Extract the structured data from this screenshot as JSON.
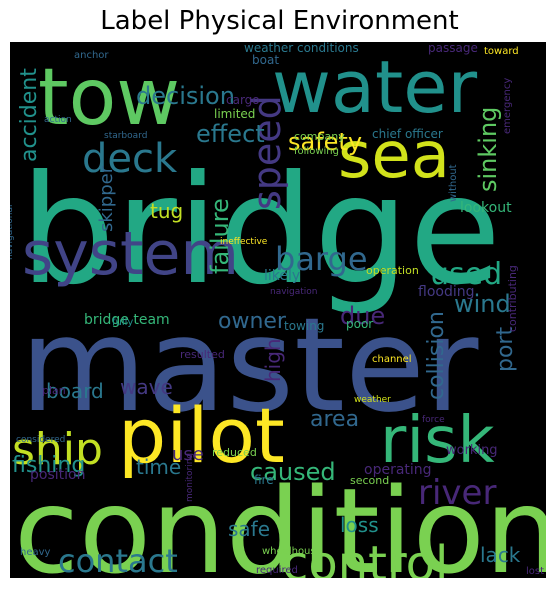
{
  "chart_data": {
    "type": "wordcloud",
    "title": "Label Physical Environment",
    "background": "#000000",
    "colormap": "viridis",
    "words": [
      {
        "text": "bridge",
        "weight": 1.0,
        "color": "#22a884",
        "rot": 0
      },
      {
        "text": "master",
        "weight": 0.98,
        "color": "#3b528b",
        "rot": 0
      },
      {
        "text": "condition",
        "weight": 0.95,
        "color": "#7ad151",
        "rot": 0
      },
      {
        "text": "tow",
        "weight": 0.72,
        "color": "#5ec962",
        "rot": 0
      },
      {
        "text": "water",
        "weight": 0.7,
        "color": "#21918c",
        "rot": 0
      },
      {
        "text": "pilot",
        "weight": 0.68,
        "color": "#fde725",
        "rot": 0
      },
      {
        "text": "sea",
        "weight": 0.6,
        "color": "#d2e21b",
        "rot": 0
      },
      {
        "text": "system",
        "weight": 0.58,
        "color": "#414487",
        "rot": 0
      },
      {
        "text": "risk",
        "weight": 0.57,
        "color": "#35b779",
        "rot": 0
      },
      {
        "text": "control",
        "weight": 0.45,
        "color": "#7ad151",
        "rot": 0
      },
      {
        "text": "deck",
        "weight": 0.4,
        "color": "#2a788e",
        "rot": 0
      },
      {
        "text": "ship",
        "weight": 0.38,
        "color": "#c2df23",
        "rot": 0
      },
      {
        "text": "speed",
        "weight": 0.36,
        "color": "#443983",
        "rot": 90
      },
      {
        "text": "river",
        "weight": 0.3,
        "color": "#482878",
        "rot": 0
      },
      {
        "text": "contact",
        "weight": 0.3,
        "color": "#2a788e",
        "rot": 0
      },
      {
        "text": "barge",
        "weight": 0.28,
        "color": "#31688e",
        "rot": 0
      },
      {
        "text": "used",
        "weight": 0.26,
        "color": "#22a884",
        "rot": 0
      },
      {
        "text": "decision",
        "weight": 0.24,
        "color": "#2a788e",
        "rot": 0
      },
      {
        "text": "effect",
        "weight": 0.22,
        "color": "#2a788e",
        "rot": 0
      },
      {
        "text": "safety",
        "weight": 0.22,
        "color": "#fde725",
        "rot": 0
      },
      {
        "text": "sinking",
        "weight": 0.22,
        "color": "#5ec962",
        "rot": 90
      },
      {
        "text": "failure",
        "weight": 0.22,
        "color": "#35b779",
        "rot": 90
      },
      {
        "text": "wind",
        "weight": 0.22,
        "color": "#2a788e",
        "rot": 0
      },
      {
        "text": "owner",
        "weight": 0.22,
        "color": "#31688e",
        "rot": 0
      },
      {
        "text": "due",
        "weight": 0.22,
        "color": "#482878",
        "rot": 0
      },
      {
        "text": "accident",
        "weight": 0.22,
        "color": "#21918c",
        "rot": 90
      },
      {
        "text": "area",
        "weight": 0.22,
        "color": "#31688e",
        "rot": 0
      },
      {
        "text": "collision",
        "weight": 0.22,
        "color": "#31688e",
        "rot": 90
      },
      {
        "text": "high",
        "weight": 0.2,
        "color": "#482878",
        "rot": 90
      },
      {
        "text": "port",
        "weight": 0.2,
        "color": "#31688e",
        "rot": 90
      },
      {
        "text": "wave",
        "weight": 0.2,
        "color": "#443983",
        "rot": 0
      },
      {
        "text": "board",
        "weight": 0.2,
        "color": "#2a788e",
        "rot": 0
      },
      {
        "text": "fishing",
        "weight": 0.2,
        "color": "#21918c",
        "rot": 0
      },
      {
        "text": "time",
        "weight": 0.2,
        "color": "#2a788e",
        "rot": 0
      },
      {
        "text": "caused",
        "weight": 0.2,
        "color": "#35b779",
        "rot": 0
      },
      {
        "text": "use",
        "weight": 0.2,
        "color": "#482878",
        "rot": 0
      },
      {
        "text": "loss",
        "weight": 0.2,
        "color": "#21918c",
        "rot": 0
      },
      {
        "text": "safe",
        "weight": 0.2,
        "color": "#2a788e",
        "rot": 0
      },
      {
        "text": "lack",
        "weight": 0.2,
        "color": "#2a788e",
        "rot": 0
      },
      {
        "text": "tug",
        "weight": 0.18,
        "color": "#c2df23",
        "rot": 0
      },
      {
        "text": "skipper",
        "weight": 0.16,
        "color": "#31688e",
        "rot": 90
      },
      {
        "text": "bridge team",
        "weight": 0.15,
        "color": "#35b779",
        "rot": 0
      },
      {
        "text": "weather conditions",
        "weight": 0.12,
        "color": "#2a788e",
        "rot": 0
      },
      {
        "text": "passage",
        "weight": 0.11,
        "color": "#482878",
        "rot": 0
      },
      {
        "text": "anchor",
        "weight": 0.11,
        "color": "#31688e",
        "rot": 0
      },
      {
        "text": "toward",
        "weight": 0.1,
        "color": "#fde725",
        "rot": 0
      },
      {
        "text": "boat",
        "weight": 0.1,
        "color": "#31688e",
        "rot": 0
      },
      {
        "text": "cargo",
        "weight": 0.11,
        "color": "#482878",
        "rot": 0
      },
      {
        "text": "chief officer",
        "weight": 0.11,
        "color": "#2a788e",
        "rot": 0
      },
      {
        "text": "limited",
        "weight": 0.1,
        "color": "#7ad151",
        "rot": 0
      },
      {
        "text": "action",
        "weight": 0.09,
        "color": "#31688e",
        "rot": 0
      },
      {
        "text": "starboard",
        "weight": 0.09,
        "color": "#31688e",
        "rot": 0
      },
      {
        "text": "company",
        "weight": 0.1,
        "color": "#7ad151",
        "rot": 0
      },
      {
        "text": "following",
        "weight": 0.1,
        "color": "#7ad151",
        "rot": 0
      },
      {
        "text": "emergency",
        "weight": 0.1,
        "color": "#482878",
        "rot": 90
      },
      {
        "text": "without",
        "weight": 0.1,
        "color": "#31688e",
        "rot": 90
      },
      {
        "text": "lookout",
        "weight": 0.11,
        "color": "#35b779",
        "rot": 0
      },
      {
        "text": "ineffective",
        "weight": 0.09,
        "color": "#fde725",
        "rot": 0
      },
      {
        "text": "likely",
        "weight": 0.11,
        "color": "#2a788e",
        "rot": 0
      },
      {
        "text": "operation",
        "weight": 0.1,
        "color": "#c2df23",
        "rot": 0
      },
      {
        "text": "flooding",
        "weight": 0.11,
        "color": "#443983",
        "rot": 0
      },
      {
        "text": "navigation",
        "weight": 0.09,
        "color": "#482878",
        "rot": 0
      },
      {
        "text": "navigational",
        "weight": 0.09,
        "color": "#31688e",
        "rot": 90
      },
      {
        "text": "towing",
        "weight": 0.1,
        "color": "#2a788e",
        "rot": 0
      },
      {
        "text": "fully",
        "weight": 0.1,
        "color": "#21918c",
        "rot": 0
      },
      {
        "text": "poor",
        "weight": 0.1,
        "color": "#35b779",
        "rot": 0
      },
      {
        "text": "contributing",
        "weight": 0.11,
        "color": "#482878",
        "rot": 90
      },
      {
        "text": "resulted",
        "weight": 0.1,
        "color": "#482878",
        "rot": 0
      },
      {
        "text": "channel",
        "weight": 0.1,
        "color": "#fde725",
        "rot": 0
      },
      {
        "text": "plan",
        "weight": 0.1,
        "color": "#482878",
        "rot": 0
      },
      {
        "text": "weather",
        "weight": 0.09,
        "color": "#d2e21b",
        "rot": 0
      },
      {
        "text": "considered",
        "weight": 0.09,
        "color": "#31688e",
        "rot": 0
      },
      {
        "text": "reduced",
        "weight": 0.1,
        "color": "#7ad151",
        "rot": 0
      },
      {
        "text": "operating",
        "weight": 0.12,
        "color": "#482878",
        "rot": 0
      },
      {
        "text": "working",
        "weight": 0.1,
        "color": "#482878",
        "rot": 0
      },
      {
        "text": "position",
        "weight": 0.11,
        "color": "#482878",
        "rot": 0
      },
      {
        "text": "fire",
        "weight": 0.1,
        "color": "#2a788e",
        "rot": 0
      },
      {
        "text": "second",
        "weight": 0.1,
        "color": "#7ad151",
        "rot": 0
      },
      {
        "text": "monitoring",
        "weight": 0.09,
        "color": "#482878",
        "rot": 90
      },
      {
        "text": "heavy",
        "weight": 0.1,
        "color": "#31688e",
        "rot": 0
      },
      {
        "text": "wheelhouse",
        "weight": 0.1,
        "color": "#7ad151",
        "rot": 0
      },
      {
        "text": "required",
        "weight": 0.09,
        "color": "#482878",
        "rot": 0
      },
      {
        "text": "lost",
        "weight": 0.09,
        "color": "#482878",
        "rot": 0
      },
      {
        "text": "force",
        "weight": 0.09,
        "color": "#482878",
        "rot": 0
      }
    ]
  }
}
